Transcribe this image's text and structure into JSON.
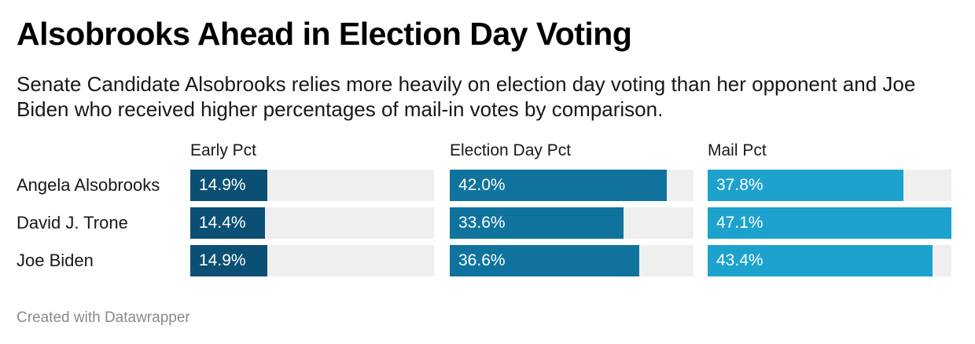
{
  "title": "Alsobrooks Ahead in Election Day Voting",
  "subtitle": "Senate Candidate Alsobrooks relies more heavily on election day voting than her opponent and Joe Biden who received higher percentages of mail-in votes by comparison.",
  "footer": "Created with Datawrapper",
  "chart_data": {
    "type": "bar",
    "orientation": "horizontal",
    "layout": "split-bars",
    "categories": [
      "Angela Alsobrooks",
      "David J. Trone",
      "Joe Biden"
    ],
    "series": [
      {
        "name": "Early Pct",
        "values": [
          14.9,
          14.4,
          14.9
        ],
        "labels": [
          "14.9%",
          "14.4%",
          "14.9%"
        ],
        "color": "#0c4f75"
      },
      {
        "name": "Election Day Pct",
        "values": [
          42.0,
          33.6,
          36.6
        ],
        "labels": [
          "42.0%",
          "33.6%",
          "36.6%"
        ],
        "color": "#0f739d"
      },
      {
        "name": "Mail Pct",
        "values": [
          37.8,
          47.1,
          43.4
        ],
        "labels": [
          "37.8%",
          "47.1%",
          "43.4%"
        ],
        "color": "#1ca2cd"
      }
    ],
    "xlim": [
      0,
      47.1
    ],
    "value_suffix": "%",
    "track_color": "#efefef"
  }
}
